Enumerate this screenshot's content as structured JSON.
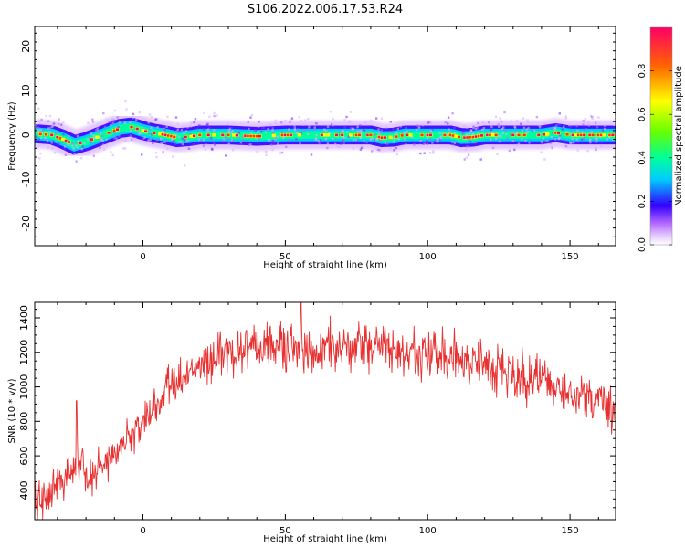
{
  "figure": {
    "title": "S106.2022.006.17.53.R24"
  },
  "chart_data": [
    {
      "type": "heatmap",
      "xlabel": "Height of straight line (km)",
      "ylabel": "Frequency (Hz)",
      "xlim": [
        -38,
        166
      ],
      "ylim": [
        -25,
        24.5
      ],
      "x_ticks": [
        0,
        50,
        100,
        150
      ],
      "y_ticks": [
        20,
        10,
        0,
        -10,
        -20
      ],
      "grid": false,
      "colormap": [
        "#ffffff",
        "#e6ccff",
        "#b266ff",
        "#3300ff",
        "#00ccff",
        "#00ff99",
        "#66ff00",
        "#ffff00",
        "#ff6600",
        "#ff0066"
      ],
      "colorbar": {
        "label": "Normalized spectral amplitude",
        "range": [
          0,
          1
        ],
        "ticks": [
          0.0,
          0.2,
          0.4,
          0.6,
          0.8
        ]
      },
      "trace": {
        "height_km": [
          -38,
          -32,
          -28,
          -24,
          -20,
          -16,
          -12,
          -8,
          -4,
          0,
          4,
          8,
          12,
          16,
          20,
          30,
          40,
          50,
          60,
          70,
          80,
          84,
          88,
          92,
          100,
          108,
          112,
          116,
          120,
          130,
          140,
          145,
          150,
          155,
          166
        ],
        "frequency_hz": [
          0.3,
          0.0,
          -1.0,
          -2.2,
          -1.5,
          -0.5,
          0.5,
          1.5,
          1.8,
          1.0,
          0.4,
          0.0,
          -0.6,
          -0.4,
          0.0,
          0.0,
          -0.3,
          0.0,
          0.0,
          0.0,
          0.0,
          -0.6,
          -0.5,
          0.0,
          0.0,
          0.0,
          -0.6,
          -0.5,
          0.0,
          0.0,
          0.0,
          0.5,
          0.0,
          0.0,
          0.0
        ],
        "bandwidth_hz": 2.5
      }
    },
    {
      "type": "line",
      "xlabel": "Height of straight line (km)",
      "ylabel": "SNR (10 * v/v)",
      "xlim": [
        -38,
        166
      ],
      "ylim": [
        230,
        1490
      ],
      "x_ticks": [
        0,
        50,
        100,
        150
      ],
      "y_ticks": [
        400,
        600,
        800,
        1000,
        1200,
        1400
      ],
      "grid": false,
      "color": "#e83030",
      "trend": {
        "height_km": [
          -38,
          -30,
          -25,
          -22,
          -20,
          -10,
          0,
          10,
          20,
          30,
          40,
          50,
          60,
          70,
          80,
          90,
          100,
          110,
          120,
          130,
          140,
          150,
          160,
          166
        ],
        "snr": [
          300,
          430,
          520,
          540,
          460,
          600,
          800,
          1000,
          1110,
          1200,
          1230,
          1230,
          1230,
          1230,
          1220,
          1210,
          1190,
          1160,
          1120,
          1080,
          1030,
          970,
          910,
          880
        ]
      },
      "spikes": [
        {
          "height_km": -23.3,
          "snr": 920
        },
        {
          "height_km": 55.5,
          "snr": 1490
        }
      ]
    }
  ]
}
